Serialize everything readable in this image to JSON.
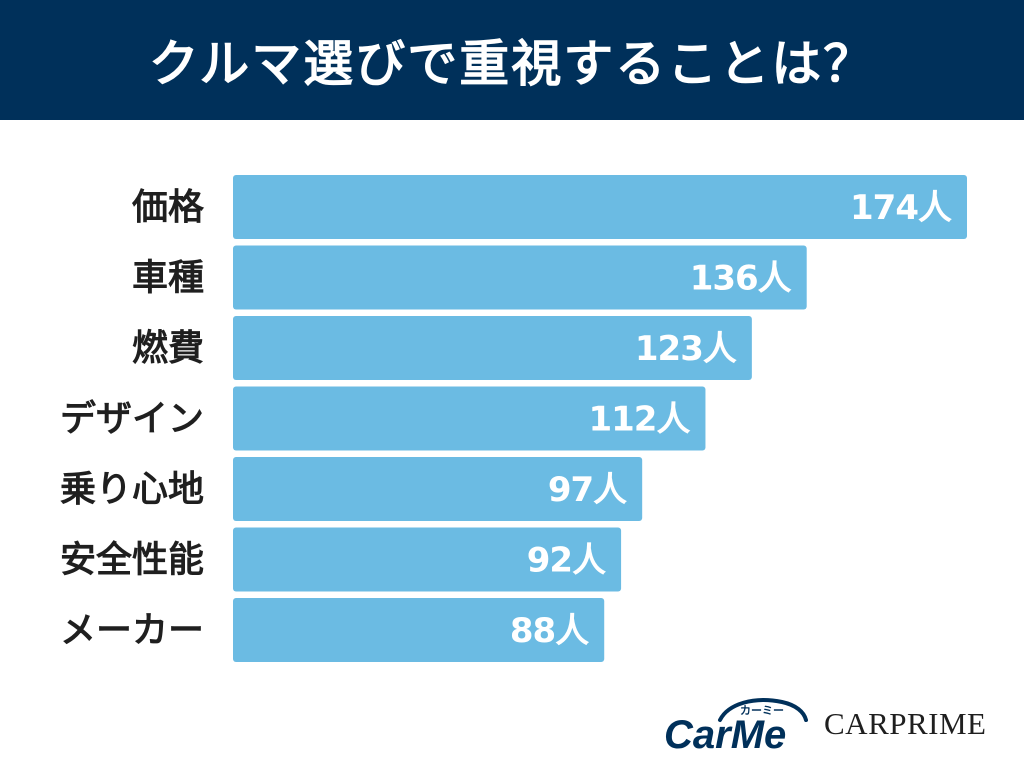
{
  "title": "クルマ選びで重視することは？",
  "colors": {
    "header_bg": "#00305a",
    "bar": "#6bbbe3",
    "label": "#1f1f1f",
    "value_text": "#ffffff"
  },
  "logos": {
    "carme_text": "CarMe",
    "carme_kana": "カーミー",
    "carprime_text": "CARPRIME"
  },
  "chart_data": {
    "type": "bar",
    "orientation": "horizontal",
    "title": "クルマ選びで重視することは？",
    "categories": [
      "価格",
      "車種",
      "燃費",
      "デザイン",
      "乗り心地",
      "安全性能",
      "メーカー"
    ],
    "values": [
      174,
      136,
      123,
      112,
      97,
      92,
      88
    ],
    "value_suffix": "人",
    "xlabel": "",
    "ylabel": "",
    "xlim": [
      0,
      174
    ],
    "grid": false,
    "legend": "none"
  }
}
